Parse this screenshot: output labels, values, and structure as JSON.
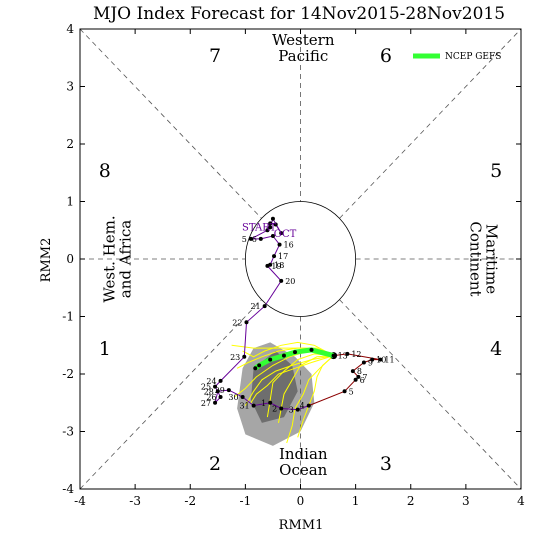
{
  "chart_data": {
    "type": "line",
    "title": "MJO Index Forecast for 14Nov2015-28Nov2015",
    "xlabel": "RMM1",
    "ylabel": "RMM2",
    "xlim": [
      -4,
      4
    ],
    "ylim": [
      -4,
      4
    ],
    "ticks": [
      "-4",
      "-3",
      "-2",
      "-1",
      "0",
      "1",
      "2",
      "3",
      "4"
    ],
    "phases": [
      {
        "label": "1",
        "x": -3.55,
        "y": -1.55
      },
      {
        "label": "2",
        "x": -1.55,
        "y": -3.55
      },
      {
        "label": "3",
        "x": 1.55,
        "y": -3.55
      },
      {
        "label": "4",
        "x": 3.55,
        "y": -1.55
      },
      {
        "label": "5",
        "x": 3.55,
        "y": 1.55
      },
      {
        "label": "6",
        "x": 1.55,
        "y": 3.55
      },
      {
        "label": "7",
        "x": -1.55,
        "y": 3.55
      },
      {
        "label": "8",
        "x": -3.55,
        "y": 1.55
      }
    ],
    "regions": [
      {
        "lines": [
          "Western",
          "Pacific"
        ],
        "x": 0.05,
        "y": 3.65,
        "rotate": 0
      },
      {
        "lines": [
          "Indian",
          "Ocean"
        ],
        "x": 0.05,
        "y": -3.55,
        "rotate": 0
      },
      {
        "lines": [
          "West. Hem.",
          "and Africa"
        ],
        "x": -3.3,
        "y": 0.0,
        "rotate": -90
      },
      {
        "lines": [
          "Maritime",
          "Continent"
        ],
        "x": 3.3,
        "y": 0.0,
        "rotate": 90
      }
    ],
    "legend": {
      "label": "NCEP GEFS",
      "color": "#33ff33",
      "position": "top-right"
    },
    "annotations": [
      {
        "text": "START",
        "x": -0.75,
        "y": 0.5,
        "color": "#660099"
      },
      {
        "text": "OCT",
        "x": -0.28,
        "y": 0.38,
        "color": "#660099"
      }
    ],
    "observed": {
      "name": "",
      "color_oct": "#660099",
      "color_nov": "#000000",
      "points_oct": [
        {
          "label": "",
          "x": -0.55,
          "y": 0.55
        },
        {
          "label": "",
          "x": -0.5,
          "y": 0.7
        },
        {
          "label": "",
          "x": -0.35,
          "y": 0.45
        },
        {
          "label": "",
          "x": -0.45,
          "y": 0.6
        },
        {
          "label": "",
          "x": -0.55,
          "y": 0.62
        },
        {
          "label": "",
          "x": -0.6,
          "y": 0.5
        },
        {
          "label": "5",
          "x": -0.9,
          "y": 0.35
        },
        {
          "label": "6",
          "x": -0.72,
          "y": 0.35
        },
        {
          "label": "",
          "x": -0.5,
          "y": 0.4
        },
        {
          "label": "16",
          "x": -0.38,
          "y": 0.25
        },
        {
          "label": "17",
          "x": -0.48,
          "y": 0.05
        },
        {
          "label": "18",
          "x": -0.55,
          "y": -0.1
        },
        {
          "label": "19",
          "x": -0.6,
          "y": -0.12
        },
        {
          "label": "20",
          "x": -0.35,
          "y": -0.38
        },
        {
          "label": "21",
          "x": -0.65,
          "y": -0.82
        },
        {
          "label": "22",
          "x": -0.98,
          "y": -1.1
        },
        {
          "label": "23",
          "x": -1.02,
          "y": -1.7
        },
        {
          "label": "24",
          "x": -1.45,
          "y": -2.12
        },
        {
          "label": "25",
          "x": -1.55,
          "y": -2.22
        },
        {
          "label": "26",
          "x": -1.45,
          "y": -2.4
        },
        {
          "label": "27",
          "x": -1.55,
          "y": -2.5
        },
        {
          "label": "28",
          "x": -1.5,
          "y": -2.3
        },
        {
          "label": "29",
          "x": -1.3,
          "y": -2.28
        },
        {
          "label": "30",
          "x": -1.05,
          "y": -2.4
        },
        {
          "label": "31",
          "x": -0.85,
          "y": -2.55
        }
      ],
      "points_nov": [
        {
          "label": "1",
          "x": -0.55,
          "y": -2.5
        },
        {
          "label": "2",
          "x": -0.35,
          "y": -2.6
        },
        {
          "label": "3",
          "x": -0.05,
          "y": -2.62
        },
        {
          "label": "4",
          "x": 0.15,
          "y": -2.55
        },
        {
          "label": "5",
          "x": 0.8,
          "y": -2.3
        },
        {
          "label": "6",
          "x": 1.0,
          "y": -2.1
        },
        {
          "label": "7",
          "x": 1.05,
          "y": -2.05
        },
        {
          "label": "8",
          "x": 0.95,
          "y": -1.95
        },
        {
          "label": "9",
          "x": 1.15,
          "y": -1.8
        },
        {
          "label": "10",
          "x": 1.3,
          "y": -1.75
        },
        {
          "label": "11",
          "x": 1.45,
          "y": -1.75
        },
        {
          "label": "12",
          "x": 0.85,
          "y": -1.65
        },
        {
          "label": "13",
          "x": 0.6,
          "y": -1.68
        }
      ]
    },
    "ensemble_mean": {
      "name": "NCEP GEFS",
      "color": "#33ff33",
      "points": [
        {
          "x": 0.6,
          "y": -1.68
        },
        {
          "x": 0.2,
          "y": -1.58
        },
        {
          "x": -0.1,
          "y": -1.62
        },
        {
          "x": -0.3,
          "y": -1.68
        },
        {
          "x": -0.55,
          "y": -1.75
        },
        {
          "x": -0.75,
          "y": -1.85
        },
        {
          "x": -0.82,
          "y": -1.9
        }
      ]
    },
    "ensemble_members": {
      "color": "#ffff00",
      "members": [
        [
          [
            0.6,
            -1.68
          ],
          [
            0.3,
            -1.55
          ],
          [
            -0.05,
            -1.55
          ],
          [
            -0.4,
            -1.6
          ],
          [
            -0.7,
            -1.7
          ],
          [
            -0.95,
            -1.8
          ],
          [
            -1.15,
            -1.9
          ]
        ],
        [
          [
            0.6,
            -1.68
          ],
          [
            0.2,
            -1.8
          ],
          [
            -0.1,
            -1.9
          ],
          [
            -0.4,
            -2.0
          ],
          [
            -0.6,
            -2.2
          ],
          [
            -0.8,
            -2.35
          ],
          [
            -0.9,
            -2.5
          ]
        ],
        [
          [
            0.6,
            -1.68
          ],
          [
            0.25,
            -1.5
          ],
          [
            -0.05,
            -1.45
          ],
          [
            -0.35,
            -1.5
          ],
          [
            -0.65,
            -1.6
          ],
          [
            -0.85,
            -1.7
          ],
          [
            -1.05,
            -1.6
          ]
        ],
        [
          [
            0.6,
            -1.68
          ],
          [
            0.3,
            -1.7
          ],
          [
            0.0,
            -1.85
          ],
          [
            -0.15,
            -2.1
          ],
          [
            -0.3,
            -2.35
          ],
          [
            -0.35,
            -2.6
          ],
          [
            -0.4,
            -2.85
          ]
        ],
        [
          [
            0.6,
            -1.68
          ],
          [
            0.35,
            -1.9
          ],
          [
            0.15,
            -2.1
          ],
          [
            0.05,
            -2.35
          ],
          [
            -0.1,
            -2.6
          ],
          [
            -0.15,
            -2.9
          ],
          [
            -0.25,
            -3.2
          ]
        ],
        [
          [
            0.6,
            -1.68
          ],
          [
            0.15,
            -1.6
          ],
          [
            -0.2,
            -1.7
          ],
          [
            -0.5,
            -1.85
          ],
          [
            -0.8,
            -2.05
          ],
          [
            -1.0,
            -2.25
          ],
          [
            -1.2,
            -2.4
          ]
        ],
        [
          [
            0.6,
            -1.68
          ],
          [
            0.2,
            -1.75
          ],
          [
            -0.15,
            -1.85
          ],
          [
            -0.45,
            -1.95
          ],
          [
            -0.7,
            -2.1
          ],
          [
            -0.85,
            -2.3
          ],
          [
            -1.0,
            -2.55
          ]
        ],
        [
          [
            0.6,
            -1.68
          ],
          [
            0.35,
            -1.6
          ],
          [
            0.1,
            -1.55
          ],
          [
            -0.2,
            -1.55
          ],
          [
            -0.5,
            -1.55
          ],
          [
            -0.85,
            -1.55
          ],
          [
            -1.25,
            -1.5
          ]
        ],
        [
          [
            0.6,
            -1.68
          ],
          [
            0.4,
            -1.85
          ],
          [
            0.3,
            -2.05
          ],
          [
            0.25,
            -2.3
          ],
          [
            0.15,
            -2.55
          ],
          [
            0.05,
            -2.8
          ],
          [
            -0.05,
            -3.1
          ]
        ],
        [
          [
            0.6,
            -1.68
          ],
          [
            0.25,
            -1.65
          ],
          [
            -0.05,
            -1.75
          ],
          [
            -0.3,
            -1.95
          ],
          [
            -0.5,
            -2.15
          ],
          [
            -0.55,
            -2.45
          ],
          [
            -0.6,
            -2.75
          ]
        ]
      ]
    },
    "spread": {
      "outer_color": "#a6a6a6",
      "inner_color": "#6e6e6e",
      "outer": [
        [
          -0.55,
          -1.45
        ],
        [
          -0.1,
          -1.7
        ],
        [
          0.2,
          -2.0
        ],
        [
          0.25,
          -2.5
        ],
        [
          0.0,
          -3.0
        ],
        [
          -0.5,
          -3.25
        ],
        [
          -1.0,
          -3.05
        ],
        [
          -1.15,
          -2.6
        ],
        [
          -1.05,
          -1.9
        ],
        [
          -0.85,
          -1.55
        ]
      ],
      "inner": [
        [
          -0.45,
          -1.6
        ],
        [
          -0.15,
          -1.85
        ],
        [
          -0.05,
          -2.3
        ],
        [
          -0.3,
          -2.75
        ],
        [
          -0.7,
          -2.85
        ],
        [
          -0.9,
          -2.45
        ],
        [
          -0.85,
          -1.9
        ]
      ]
    }
  }
}
